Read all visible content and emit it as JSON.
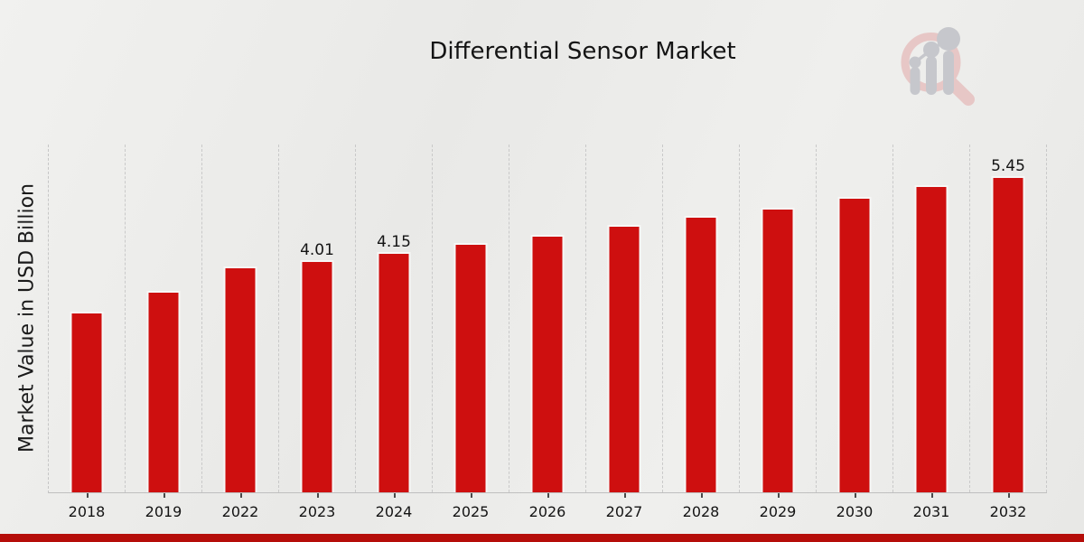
{
  "chart_data": {
    "type": "bar",
    "title": "Differential Sensor Market",
    "ylabel": "Market Value in USD Billion",
    "xlabel": "",
    "unit": "USD Billion",
    "categories": [
      "2018",
      "2019",
      "2022",
      "2023",
      "2024",
      "2025",
      "2026",
      "2027",
      "2028",
      "2029",
      "2030",
      "2031",
      "2032"
    ],
    "values": [
      3.11,
      3.48,
      3.89,
      4.01,
      4.15,
      4.3,
      4.44,
      4.61,
      4.77,
      4.91,
      5.09,
      5.3,
      5.45
    ],
    "data_labels": [
      "",
      "",
      "",
      "4.01",
      "4.15",
      "",
      "",
      "",
      "",
      "",
      "",
      "",
      "5.45"
    ],
    "ylim": [
      0,
      6
    ],
    "grid": "vertical category separators only; no horizontal gridlines; no y-axis tick labels",
    "legend": "none"
  },
  "colors": {
    "bar": "#ce0f0f",
    "bar_border": "#f7f7f6",
    "footer_band": "#b50d09",
    "background": "#ebebe9",
    "axis_line": "#bfbfbf",
    "separator": "#c9c9c9",
    "text": "#141414",
    "logo_ring": "#e7c7c6",
    "logo_bars": "#c6c7cc"
  },
  "logo": {
    "name": "magnifier-growth-chart-logo",
    "description": "faded watermark: magnifying glass containing three rising bars with dots connected by a line"
  }
}
